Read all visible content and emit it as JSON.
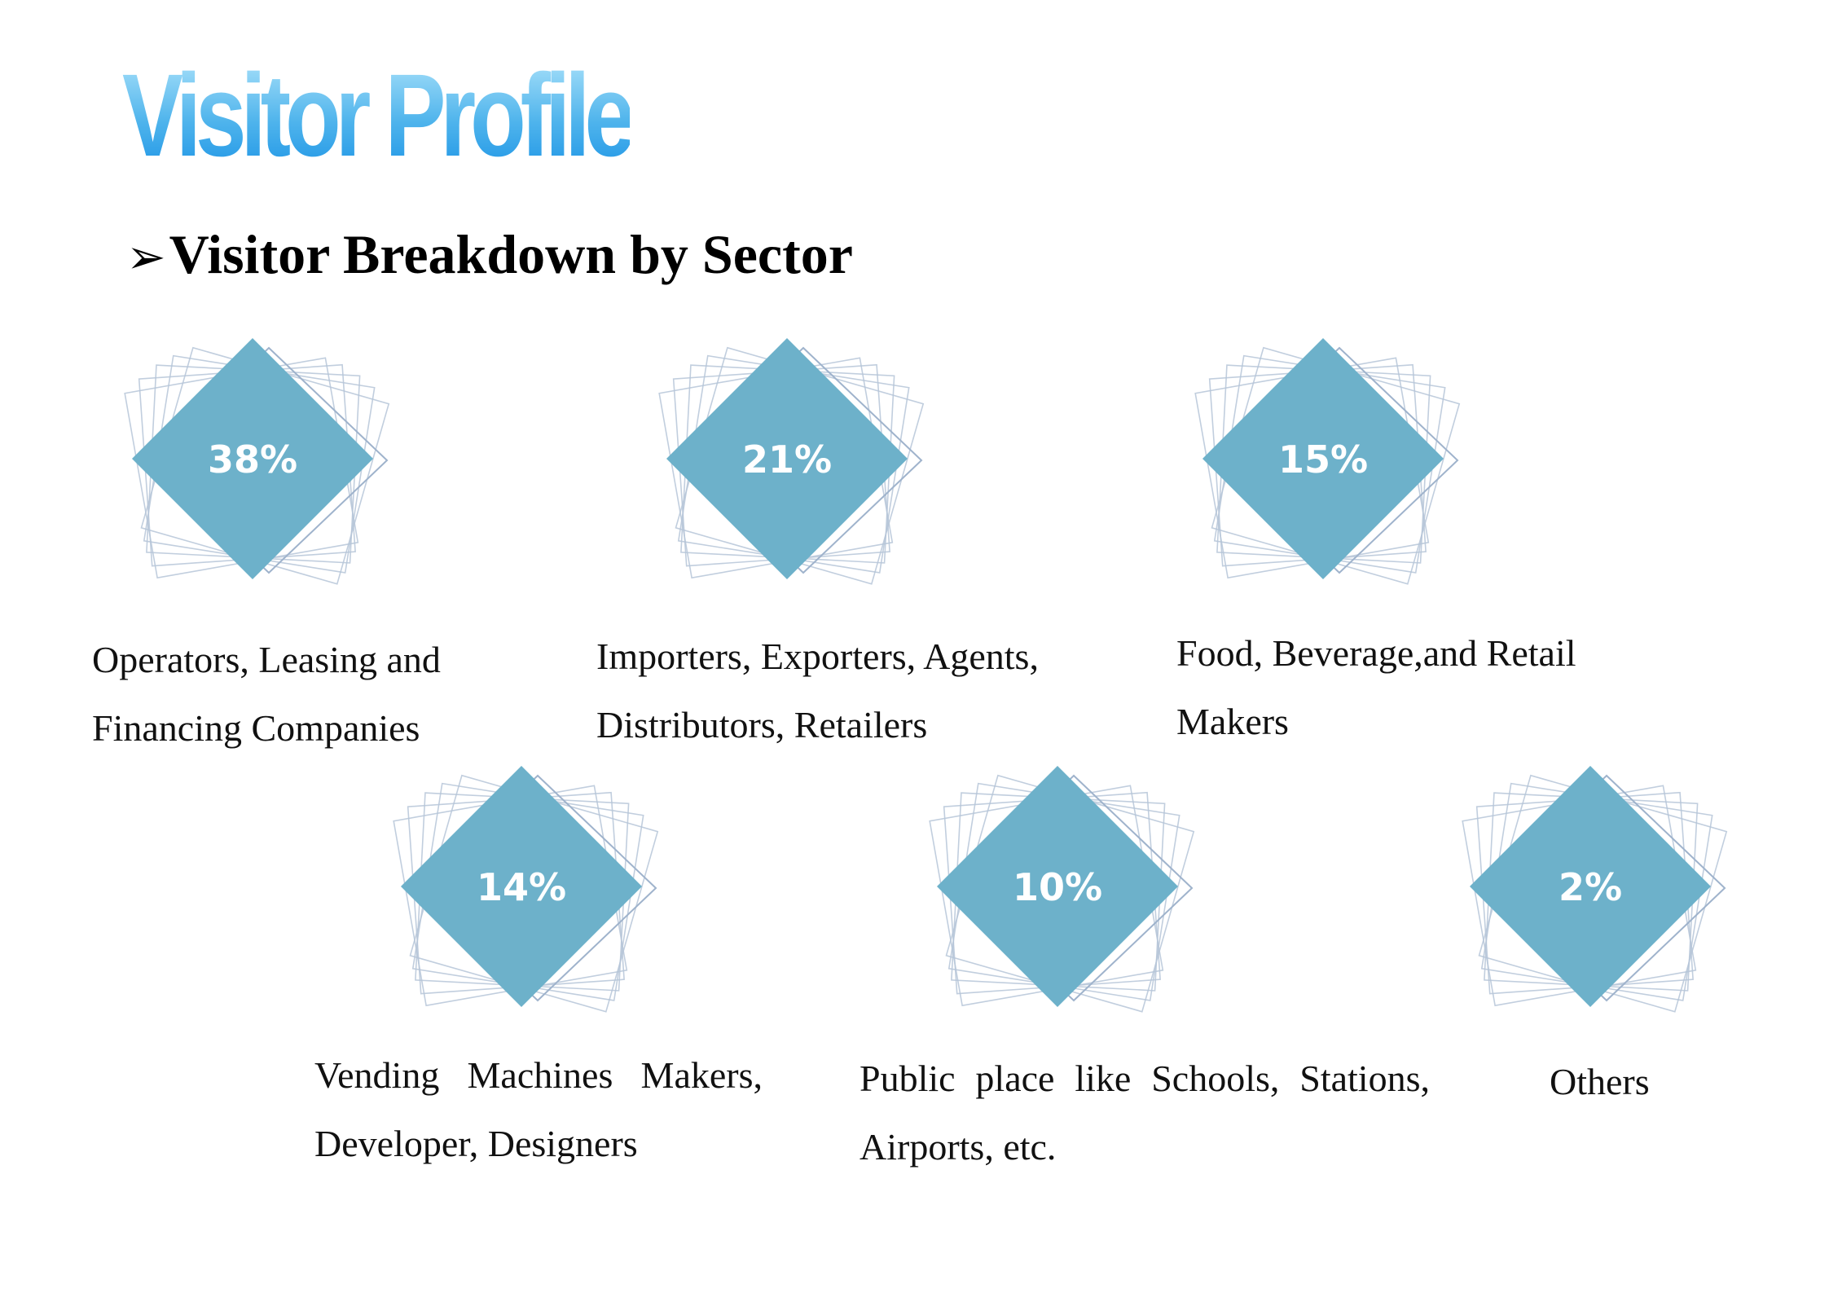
{
  "page": {
    "title": "Visitor Profile",
    "section_heading": "Visitor Breakdown by Sector"
  },
  "colors": {
    "diamond_fill": "#6db1ca",
    "outline_stroke": "#b6c6d8",
    "title_gradient": [
      "#a9e1fa",
      "#1e95e6"
    ]
  },
  "sectors": [
    {
      "percent": "38%",
      "value": 38,
      "label_lines": [
        "Operators, Leasing and",
        "Financing Companies"
      ]
    },
    {
      "percent": "21%",
      "value": 21,
      "label_lines": [
        "Importers, Exporters, Agents,",
        "Distributors, Retailers"
      ]
    },
    {
      "percent": "15%",
      "value": 15,
      "label_lines": [
        "Food, Beverage,and Retail",
        "Makers"
      ]
    },
    {
      "percent": "14%",
      "value": 14,
      "label_lines": [
        "Vending Machines Makers,",
        "Developer, Designers"
      ]
    },
    {
      "percent": "10%",
      "value": 10,
      "label_lines": [
        "Public place like Schools, Stations,",
        "Airports, etc."
      ]
    },
    {
      "percent": "2%",
      "value": 2,
      "label_lines": [
        "Others"
      ]
    }
  ]
}
